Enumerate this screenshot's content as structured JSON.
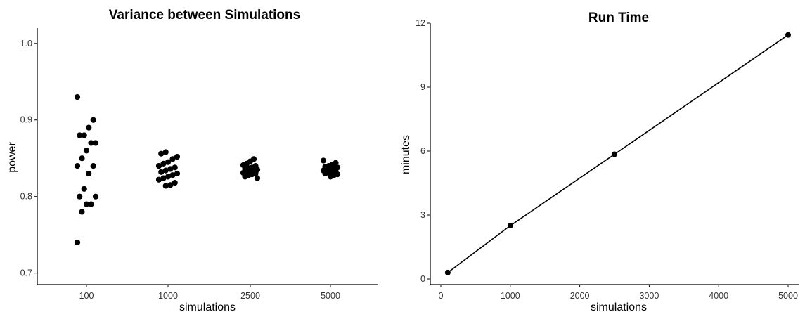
{
  "chart_data": [
    {
      "type": "scatter",
      "title": "Variance between Simulations",
      "xlabel": "simulations",
      "ylabel": "power",
      "x_type": "categorical",
      "categories": [
        "100",
        "1000",
        "2500",
        "5000"
      ],
      "ylim": [
        0.685,
        1.02
      ],
      "yticks": [
        0.7,
        0.8,
        0.9,
        1.0
      ],
      "ytick_labels": [
        "0.7",
        "0.8",
        "0.9",
        "1.0"
      ],
      "grid": false,
      "points": [
        {
          "category": "100",
          "values": [
            0.93,
            0.9,
            0.89,
            0.88,
            0.88,
            0.87,
            0.87,
            0.86,
            0.85,
            0.84,
            0.84,
            0.83,
            0.81,
            0.8,
            0.8,
            0.79,
            0.79,
            0.78,
            0.74
          ]
        },
        {
          "category": "1000",
          "values": [
            0.858,
            0.856,
            0.852,
            0.849,
            0.845,
            0.843,
            0.84,
            0.838,
            0.836,
            0.834,
            0.832,
            0.83,
            0.828,
            0.826,
            0.824,
            0.822,
            0.818,
            0.815,
            0.814
          ]
        },
        {
          "category": "2500",
          "values": [
            0.849,
            0.846,
            0.843,
            0.841,
            0.84,
            0.838,
            0.837,
            0.836,
            0.835,
            0.834,
            0.833,
            0.832,
            0.831,
            0.83,
            0.829,
            0.828,
            0.826,
            0.824
          ]
        },
        {
          "category": "5000",
          "values": [
            0.847,
            0.844,
            0.842,
            0.84,
            0.839,
            0.838,
            0.837,
            0.836,
            0.835,
            0.834,
            0.833,
            0.832,
            0.831,
            0.83,
            0.829,
            0.828,
            0.826
          ]
        }
      ]
    },
    {
      "type": "line",
      "title": "Run Time",
      "xlabel": "simulations",
      "ylabel": "minutes",
      "xlim": [
        -100,
        5250
      ],
      "ylim": [
        -0.3,
        12
      ],
      "xticks": [
        0,
        1000,
        2000,
        3000,
        4000,
        5000
      ],
      "xtick_labels": [
        "0",
        "1000",
        "2000",
        "3000",
        "4000",
        "5000"
      ],
      "yticks": [
        0,
        3,
        6,
        9,
        12
      ],
      "ytick_labels": [
        "0",
        "3",
        "6",
        "9",
        "12"
      ],
      "grid": false,
      "markers": true,
      "x": [
        100,
        1000,
        2500,
        5000
      ],
      "y": [
        0.3,
        2.5,
        5.85,
        11.45
      ]
    }
  ]
}
